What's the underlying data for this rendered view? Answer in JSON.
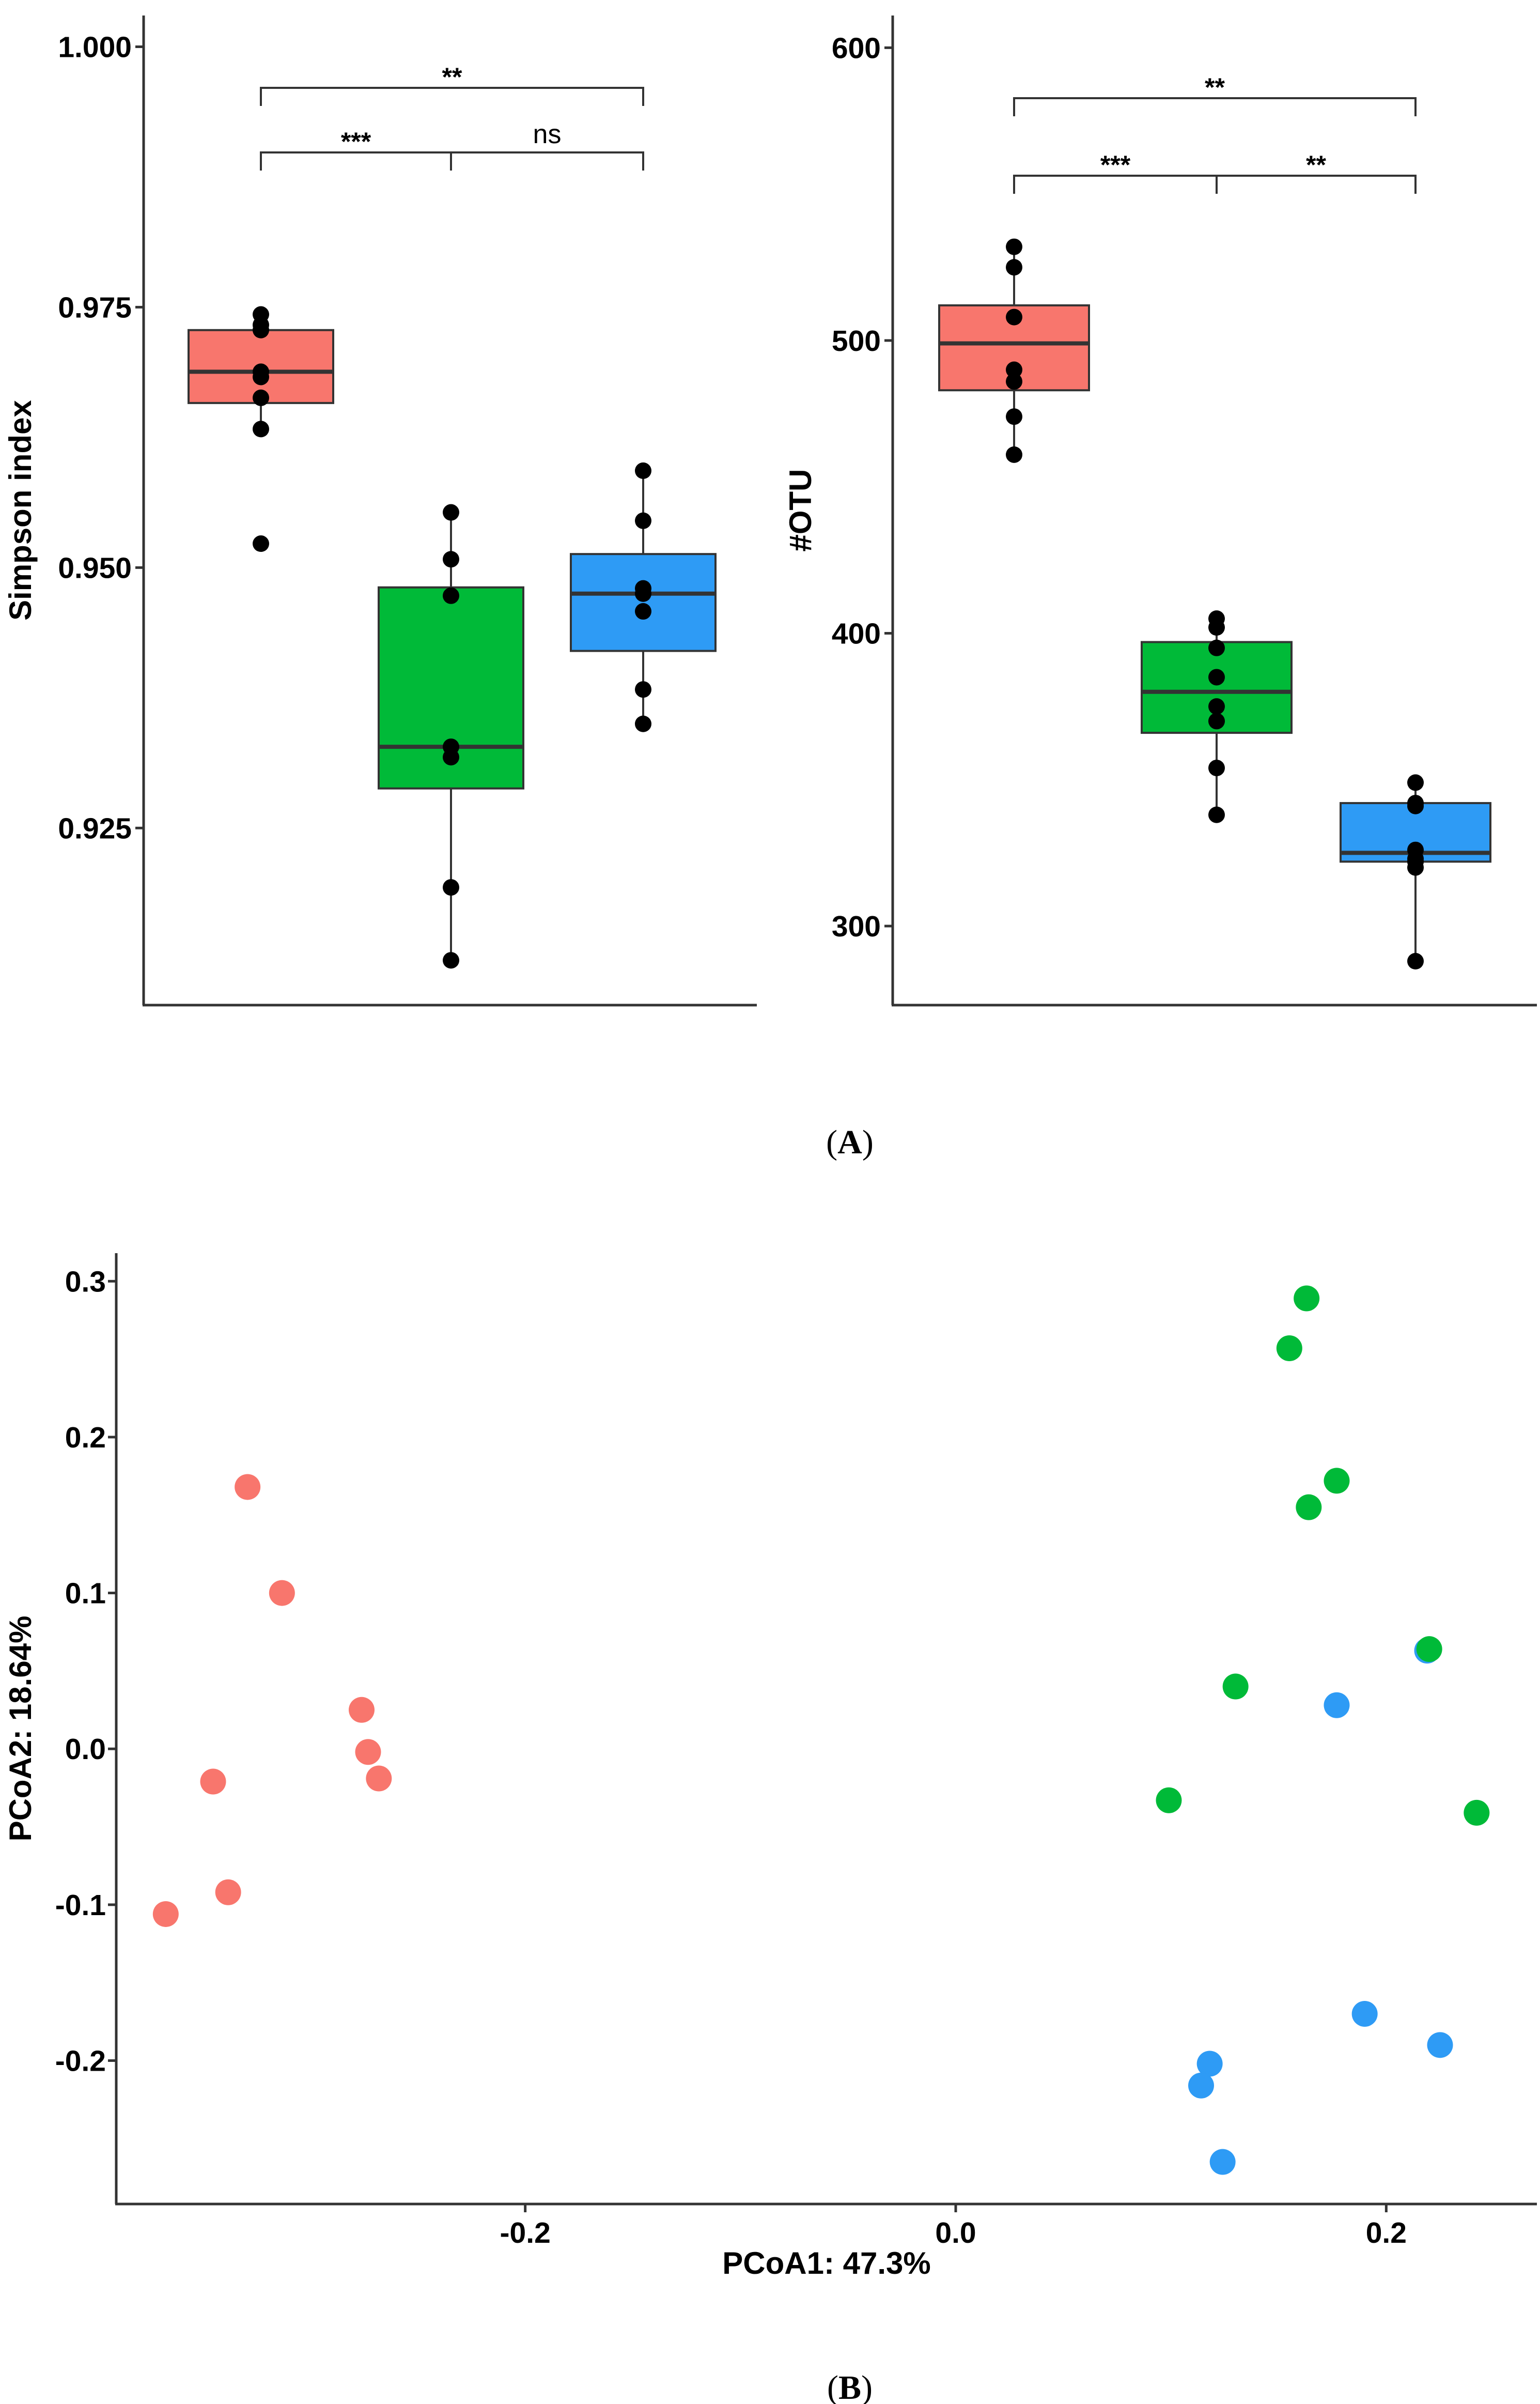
{
  "colors": {
    "group1": "#f8766d",
    "group2": "#00ba38",
    "group3": "#2e9bf5"
  },
  "chart_data": [
    {
      "type": "box",
      "panel": "A-left",
      "ylabel": "Simpson index",
      "ylim": [
        0.908,
        1.003
      ],
      "yticks": [
        0.925,
        0.95,
        0.975,
        1.0
      ],
      "ytick_labels": [
        "0.925",
        "0.950",
        "0.975",
        "1.000"
      ],
      "groups": [
        {
          "color": "group1",
          "q1": 0.9658,
          "median": 0.9688,
          "q3": 0.9728,
          "whisker_low": 0.9633,
          "whisker_high": 0.9743,
          "points": [
            0.9743,
            0.9733,
            0.9728,
            0.9688,
            0.9683,
            0.9663,
            0.9633,
            0.9523
          ]
        },
        {
          "color": "group2",
          "q1": 0.9288,
          "median": 0.9328,
          "q3": 0.9481,
          "whisker_low": 0.9123,
          "whisker_high": 0.9553,
          "points": [
            0.9553,
            0.9508,
            0.9473,
            0.9328,
            0.9318,
            0.9193,
            0.9123
          ]
        },
        {
          "color": "group3",
          "q1": 0.942,
          "median": 0.9475,
          "q3": 0.9513,
          "whisker_low": 0.935,
          "whisker_high": 0.9593,
          "points": [
            0.9593,
            0.9545,
            0.948,
            0.9475,
            0.9458,
            0.9383,
            0.935
          ]
        }
      ],
      "comparisons": [
        {
          "from": 0,
          "to": 2,
          "label": "**",
          "level": 2
        },
        {
          "from": 0,
          "to": 1,
          "label": "***",
          "level": 1
        },
        {
          "from": 1,
          "to": 2,
          "label": "ns",
          "level": 1
        }
      ]
    },
    {
      "type": "box",
      "panel": "A-right",
      "ylabel": "#OTU",
      "ylim": [
        273,
        611
      ],
      "yticks": [
        300,
        400,
        500,
        600
      ],
      "ytick_labels": [
        "300",
        "400",
        "500",
        "600"
      ],
      "groups": [
        {
          "color": "group1",
          "q1": 483,
          "median": 499,
          "q3": 512,
          "whisker_low": 461,
          "whisker_high": 532,
          "points": [
            532,
            525,
            508,
            490,
            486,
            474,
            461
          ]
        },
        {
          "color": "group2",
          "q1": 366,
          "median": 380,
          "q3": 397,
          "whisker_low": 338,
          "whisker_high": 405,
          "points": [
            405,
            402,
            395,
            385,
            375,
            370,
            354,
            338
          ]
        },
        {
          "color": "group3",
          "q1": 322,
          "median": 325,
          "q3": 342,
          "whisker_low": 288,
          "whisker_high": 349,
          "points": [
            349,
            342,
            341,
            326,
            323,
            322,
            320,
            288
          ]
        }
      ],
      "comparisons": [
        {
          "from": 0,
          "to": 2,
          "label": "**",
          "level": 2
        },
        {
          "from": 0,
          "to": 1,
          "label": "***",
          "level": 1
        },
        {
          "from": 1,
          "to": 2,
          "label": "**",
          "level": 1
        }
      ]
    },
    {
      "type": "scatter",
      "panel": "B",
      "xlabel": "PCoA1: 47.3%",
      "ylabel": "PCoA2: 18.64%",
      "xlim": [
        -0.39,
        0.27
      ],
      "ylim": [
        -0.292,
        0.318
      ],
      "xticks": [
        -0.2,
        0.0,
        0.2
      ],
      "xtick_labels": [
        "-0.2",
        "0.0",
        "0.2"
      ],
      "yticks": [
        -0.2,
        -0.1,
        0.0,
        0.1,
        0.2,
        0.3
      ],
      "ytick_labels": [
        "-0.2",
        "-0.1",
        "0.0",
        "0.1",
        "0.2",
        "0.3"
      ],
      "series": [
        {
          "color": "group1",
          "points": [
            [
              -0.329,
              0.168
            ],
            [
              -0.313,
              0.1
            ],
            [
              -0.276,
              0.025
            ],
            [
              -0.273,
              -0.002
            ],
            [
              -0.268,
              -0.019
            ],
            [
              -0.345,
              -0.021
            ],
            [
              -0.338,
              -0.092
            ],
            [
              -0.367,
              -0.106
            ]
          ]
        },
        {
          "color": "group3",
          "points": [
            [
              0.219,
              0.063
            ],
            [
              0.177,
              0.028
            ],
            [
              0.19,
              -0.17
            ],
            [
              0.225,
              -0.19
            ],
            [
              0.118,
              -0.202
            ],
            [
              0.114,
              -0.216
            ],
            [
              0.124,
              -0.265
            ]
          ]
        },
        {
          "color": "group2",
          "points": [
            [
              0.163,
              0.289
            ],
            [
              0.155,
              0.257
            ],
            [
              0.177,
              0.172
            ],
            [
              0.164,
              0.155
            ],
            [
              0.22,
              0.064
            ],
            [
              0.13,
              0.04
            ],
            [
              0.099,
              -0.033
            ],
            [
              0.242,
              -0.041
            ]
          ]
        }
      ]
    }
  ],
  "captions": {
    "a_open": "(",
    "a_label": "A",
    "a_close": ")",
    "b_open": "(",
    "b_label": "B",
    "b_close": ")"
  }
}
